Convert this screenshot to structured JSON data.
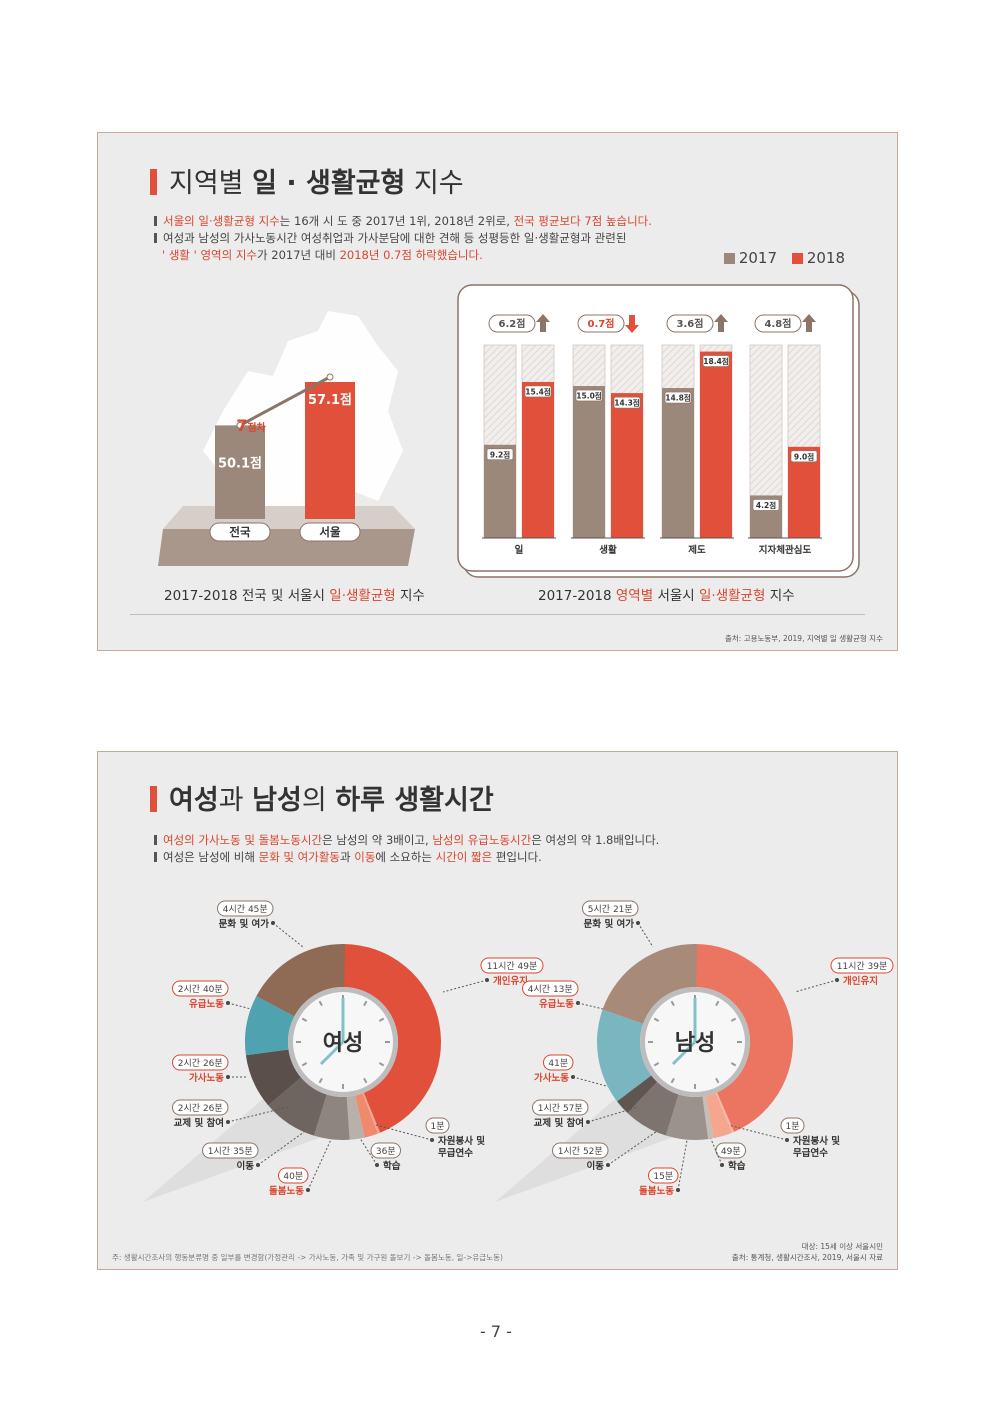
{
  "panel1": {
    "title_prefix": "지역별 ",
    "title_bold": "일 · 생활균형",
    "title_suffix": " 지수",
    "bullet1": {
      "hl1": "서울의 일·생활균형 지수",
      "t1": "는 16개 시 도 중 2017년 1위, 2018년 2위로, ",
      "hl2": "전국 평균보다 7점 높습니다."
    },
    "bullet2a": "여성과 남성의 가사노동시간 여성취업과 가사분담에 대한 견해 등 성평등한 일·생활균형과 관련된",
    "bullet2b": {
      "hl1": "' 생활 ' 영역의 지수",
      "t1": "가 2017년 대비 ",
      "hl2": "2018년 0.7점 하락했습니다."
    },
    "legend": {
      "y2017": "2017",
      "y2018": "2018",
      "color2017": "#9c887b",
      "color2018": "#e0503a"
    },
    "caption_left": {
      "t1": "2017-2018  전국 및 서울시 ",
      "hl": "일·생활균형",
      "t2": " 지수"
    },
    "caption_right": {
      "t1": "2017-2018  ",
      "hl1": "영역별",
      "t2": " 서울시 ",
      "hl2": "일·생활균형",
      "t3": " 지수"
    },
    "source": "출처: 고용노동부, 2019, 지역별 일 생활균형 지수"
  },
  "panel2": {
    "title": {
      "b1": "여성",
      "t1": "과 ",
      "b2": "남성",
      "t2": "의 ",
      "b3": "하루 생활시간"
    },
    "bullet1": {
      "hl1": "여성의 가사노동 및 돌봄노동시간",
      "t1": "은 남성의 약 3배이고, ",
      "hl2": "남성의 유급노동시간",
      "t2": "은 여성의 약 1.8배입니다."
    },
    "bullet2": {
      "t1": "여성은 남성에 비해 ",
      "hl1": "문화 및 여가활동",
      "t2": "과 ",
      "hl2": "이동",
      "t3": "에 소요하는 ",
      "hl3": "시간이 짧은",
      "t4": " 편입니다."
    },
    "note": "주: 생활시간조사의 행동분류명 중 일부를 변경함(가정관리 -> 가사노동, 가족 및 가구원 돌보기 -> 돌봄노동, 일->유급노동)",
    "source_line1": "대상: 15세 이상 서울시민",
    "source_line2": "출처: 통계청, 생활시간조사, 2019, 서울시 자료"
  },
  "page_number": "- 7 -",
  "chart_data": [
    {
      "type": "bar",
      "title": "2017-2018 전국 및 서울시 일·생활균형 지수",
      "categories": [
        "전국",
        "서울"
      ],
      "values": [
        50.1,
        57.1
      ],
      "value_labels": [
        "50.1점",
        "57.1점"
      ],
      "diff_label": {
        "num": "7",
        "unit": "점차"
      },
      "colors": [
        "#9c887b",
        "#e0503a"
      ]
    },
    {
      "type": "bar",
      "title": "2017-2018 영역별 서울시 일·생활균형 지수",
      "categories": [
        "일",
        "생활",
        "제도",
        "지자체관심도"
      ],
      "ylim": [
        0,
        20
      ],
      "series": [
        {
          "name": "2017",
          "values": [
            9.2,
            15.0,
            14.8,
            4.2
          ],
          "labels": [
            "9.2점",
            "15.0점",
            "14.8점",
            "4.2점"
          ]
        },
        {
          "name": "2018",
          "values": [
            15.4,
            14.3,
            18.4,
            9.0
          ],
          "labels": [
            "15.4점",
            "14.3점",
            "18.4점",
            "9.0점"
          ]
        }
      ],
      "changes": [
        {
          "label": "6.2점",
          "direction": "up"
        },
        {
          "label": "0.7점",
          "direction": "down"
        },
        {
          "label": "3.6점",
          "direction": "up"
        },
        {
          "label": "4.8점",
          "direction": "up"
        }
      ]
    },
    {
      "type": "pie",
      "title": "여성",
      "slices": [
        {
          "name": "개인유지",
          "time": "11시간 49분",
          "minutes": 709,
          "color": "#e0503a"
        },
        {
          "name": "자원봉사 및 무급연수",
          "time": "1분",
          "minutes": 1,
          "color": "#f2a58f"
        },
        {
          "name": "학습",
          "time": "36분",
          "minutes": 36,
          "color": "#f08a6c"
        },
        {
          "name": "돌봄노동",
          "time": "40분",
          "minutes": 40,
          "color": "#b8b0ab"
        },
        {
          "name": "이동",
          "time": "1시간 35분",
          "minutes": 95,
          "color": "#8e8580"
        },
        {
          "name": "교제 및 참여",
          "time": "2시간 26분",
          "minutes": 146,
          "color": "#6f6560"
        },
        {
          "name": "가사노동",
          "time": "2시간 26분",
          "minutes": 146,
          "color": "#5a4f4b"
        },
        {
          "name": "유급노동",
          "time": "2시간 40분",
          "minutes": 160,
          "color": "#4fa3b0"
        },
        {
          "name": "문화 및 여가",
          "time": "4시간 45분",
          "minutes": 285,
          "color": "#8f6a55"
        }
      ]
    },
    {
      "type": "pie",
      "title": "남성",
      "slices": [
        {
          "name": "개인유지",
          "time": "11시간 39분",
          "minutes": 699,
          "color": "#ec7562"
        },
        {
          "name": "자원봉사 및 무급연수",
          "time": "1분",
          "minutes": 1,
          "color": "#f6b8a6"
        },
        {
          "name": "학습",
          "time": "49분",
          "minutes": 49,
          "color": "#f5a68f"
        },
        {
          "name": "돌봄노동",
          "time": "15분",
          "minutes": 15,
          "color": "#c5bdb8"
        },
        {
          "name": "이동",
          "time": "1시간 52분",
          "minutes": 112,
          "color": "#9a928d"
        },
        {
          "name": "교제 및 참여",
          "time": "1시간 57분",
          "minutes": 117,
          "color": "#7d746f"
        },
        {
          "name": "가사노동",
          "time": "41분",
          "minutes": 41,
          "color": "#5f5551"
        },
        {
          "name": "유급노동",
          "time": "4시간 13분",
          "minutes": 253,
          "color": "#7ab6c0"
        },
        {
          "name": "문화 및 여가",
          "time": "5시간 21분",
          "minutes": 321,
          "color": "#a88a78"
        }
      ]
    }
  ]
}
